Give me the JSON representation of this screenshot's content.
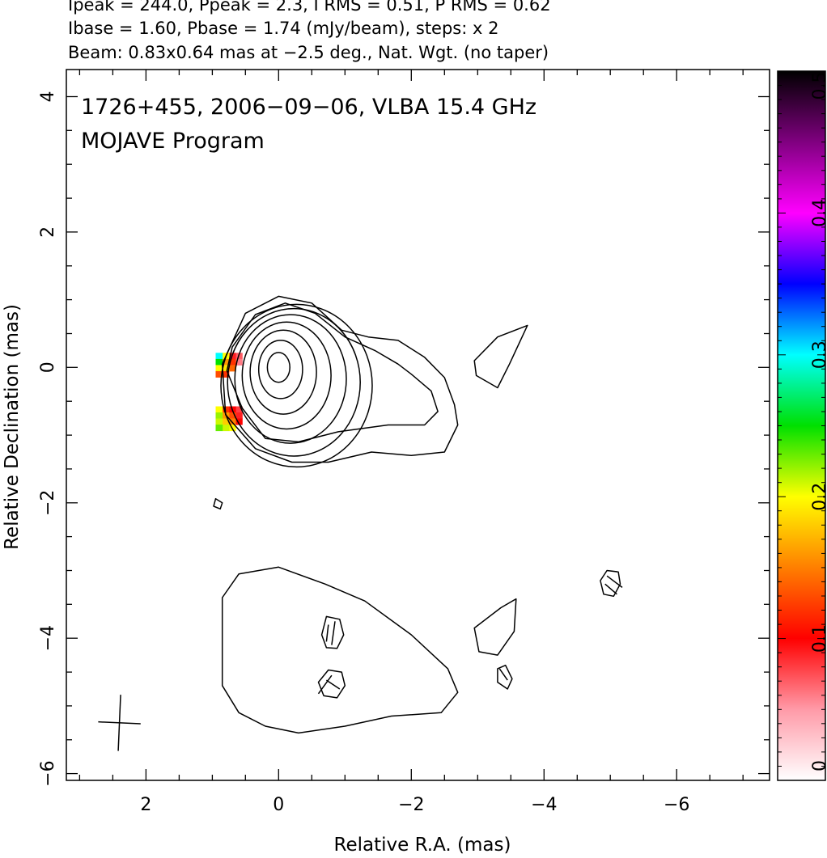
{
  "header": {
    "line1": "Ipeak = 244.0, Ppeak = 2.3, I RMS = 0.51, P RMS = 0.62",
    "line2": "Ibase = 1.60, Pbase = 1.74 (mJy/beam), steps: x 2",
    "line3": "Beam: 0.83x0.64 mas at −2.5 deg., Nat. Wgt. (no taper)"
  },
  "chart_data": {
    "type": "heatmap",
    "title_line1": "1726+455, 2006−09−06, VLBA 15.4 GHz",
    "title_line2": "MOJAVE Program",
    "xlabel": "Relative R.A. (mas)",
    "ylabel": "Relative Declination (mas)",
    "xlim": [
      3.2,
      -7.4
    ],
    "ylim": [
      -6.1,
      4.4
    ],
    "x_ticks": [
      {
        "v": 2,
        "label": "2"
      },
      {
        "v": 0,
        "label": "0"
      },
      {
        "v": -2,
        "label": "−2"
      },
      {
        "v": -4,
        "label": "−4"
      },
      {
        "v": -6,
        "label": "−6"
      }
    ],
    "y_ticks": [
      {
        "v": 4,
        "label": "4"
      },
      {
        "v": 2,
        "label": "2"
      },
      {
        "v": 0,
        "label": "0"
      },
      {
        "v": -2,
        "label": "−2"
      },
      {
        "v": -4,
        "label": "−4"
      },
      {
        "v": -6,
        "label": "−6"
      }
    ],
    "colorbar": {
      "range": [
        0,
        0.5
      ],
      "ticks": [
        {
          "v": 0,
          "label": "0"
        },
        {
          "v": 0.1,
          "label": "0.1"
        },
        {
          "v": 0.2,
          "label": "0.2"
        },
        {
          "v": 0.3,
          "label": "0.3"
        },
        {
          "v": 0.4,
          "label": "0.4"
        },
        {
          "v": 0.5,
          "label": "0.5"
        }
      ],
      "stops": [
        "#ffffff",
        "#ff9aa8",
        "#ff0000",
        "#ff7f00",
        "#ffff00",
        "#00e000",
        "#00ffff",
        "#0000ff",
        "#ff00ff",
        "#800080",
        "#000000"
      ]
    },
    "core_contours": [
      {
        "cx": 0.0,
        "cy": 0.0,
        "rx": 0.17,
        "ry": 0.22
      },
      {
        "cx": -0.03,
        "cy": -0.03,
        "rx": 0.33,
        "ry": 0.43
      },
      {
        "cx": -0.07,
        "cy": -0.07,
        "rx": 0.5,
        "ry": 0.62
      },
      {
        "cx": -0.12,
        "cy": -0.12,
        "rx": 0.67,
        "ry": 0.79
      },
      {
        "cx": -0.18,
        "cy": -0.17,
        "rx": 0.84,
        "ry": 0.95
      },
      {
        "cx": -0.23,
        "cy": -0.22,
        "rx": 1.0,
        "ry": 1.09
      },
      {
        "cx": -0.27,
        "cy": -0.27,
        "rx": 1.14,
        "ry": 1.2
      }
    ],
    "extended_contours": [
      {
        "points": [
          [
            0.7,
            0.3
          ],
          [
            0.35,
            0.78
          ],
          [
            -0.1,
            0.95
          ],
          [
            -0.55,
            0.8
          ],
          [
            -1.0,
            0.45
          ],
          [
            -1.45,
            0.25
          ],
          [
            -1.8,
            0.05
          ],
          [
            -2.0,
            -0.1
          ],
          [
            -2.3,
            -0.35
          ],
          [
            -2.4,
            -0.65
          ],
          [
            -2.2,
            -0.85
          ],
          [
            -1.65,
            -0.85
          ],
          [
            -0.9,
            -0.95
          ],
          [
            -0.3,
            -1.1
          ],
          [
            0.2,
            -1.05
          ],
          [
            0.55,
            -0.6
          ],
          [
            0.78,
            -0.05
          ]
        ]
      },
      {
        "points": [
          [
            0.85,
            0.05
          ],
          [
            0.5,
            0.8
          ],
          [
            0.0,
            1.05
          ],
          [
            -0.5,
            0.95
          ],
          [
            -0.95,
            0.55
          ],
          [
            -1.35,
            0.45
          ],
          [
            -1.8,
            0.4
          ],
          [
            -2.2,
            0.15
          ],
          [
            -2.5,
            -0.15
          ],
          [
            -2.65,
            -0.55
          ],
          [
            -2.7,
            -0.85
          ],
          [
            -2.5,
            -1.25
          ],
          [
            -2.0,
            -1.3
          ],
          [
            -1.4,
            -1.25
          ],
          [
            -0.75,
            -1.4
          ],
          [
            -0.2,
            -1.4
          ],
          [
            0.35,
            -1.2
          ],
          [
            0.8,
            -0.7
          ]
        ]
      },
      {
        "points": [
          [
            -2.95,
            0.1
          ],
          [
            -3.3,
            0.45
          ],
          [
            -3.75,
            0.62
          ],
          [
            -3.48,
            0.05
          ],
          [
            -3.3,
            -0.3
          ],
          [
            -2.98,
            -0.12
          ]
        ]
      },
      {
        "points": [
          [
            0.85,
            -2.0
          ],
          [
            0.95,
            -1.94
          ],
          [
            0.98,
            -2.05
          ],
          [
            0.88,
            -2.09
          ]
        ]
      },
      {
        "points": [
          [
            0.85,
            -3.4
          ],
          [
            0.6,
            -3.05
          ],
          [
            0.0,
            -2.95
          ],
          [
            -0.7,
            -3.2
          ],
          [
            -1.3,
            -3.45
          ],
          [
            -2.0,
            -3.95
          ],
          [
            -2.55,
            -4.45
          ],
          [
            -2.7,
            -4.8
          ],
          [
            -2.45,
            -5.1
          ],
          [
            -1.7,
            -5.15
          ],
          [
            -1.0,
            -5.3
          ],
          [
            -0.3,
            -5.4
          ],
          [
            0.2,
            -5.3
          ],
          [
            0.6,
            -5.1
          ],
          [
            0.85,
            -4.7
          ],
          [
            0.85,
            -4.0
          ]
        ]
      },
      {
        "points": [
          [
            -2.95,
            -3.85
          ],
          [
            -3.35,
            -3.55
          ],
          [
            -3.58,
            -3.42
          ],
          [
            -3.55,
            -3.9
          ],
          [
            -3.3,
            -4.25
          ],
          [
            -3.02,
            -4.2
          ]
        ]
      },
      {
        "points": [
          [
            -0.65,
            -3.95
          ],
          [
            -0.72,
            -3.68
          ],
          [
            -0.92,
            -3.72
          ],
          [
            -0.98,
            -3.95
          ],
          [
            -0.88,
            -4.15
          ],
          [
            -0.72,
            -4.14
          ]
        ]
      },
      {
        "points": [
          [
            -0.6,
            -4.65
          ],
          [
            -0.75,
            -4.47
          ],
          [
            -0.95,
            -4.5
          ],
          [
            -1.0,
            -4.7
          ],
          [
            -0.88,
            -4.88
          ],
          [
            -0.68,
            -4.85
          ]
        ]
      },
      {
        "points": [
          [
            -3.3,
            -4.45
          ],
          [
            -3.42,
            -4.4
          ],
          [
            -3.52,
            -4.6
          ],
          [
            -3.45,
            -4.75
          ],
          [
            -3.3,
            -4.65
          ]
        ]
      },
      {
        "points": [
          [
            -4.85,
            -3.15
          ],
          [
            -4.95,
            -3.0
          ],
          [
            -5.12,
            -3.02
          ],
          [
            -5.15,
            -3.2
          ],
          [
            -5.05,
            -3.38
          ],
          [
            -4.9,
            -3.35
          ]
        ]
      }
    ],
    "evpa_ticks": [
      [
        -0.85,
        -3.75,
        -0.8,
        -4.1
      ],
      [
        -0.75,
        -3.8,
        -0.72,
        -4.05
      ],
      [
        -0.8,
        -4.55,
        -0.6,
        -4.82
      ],
      [
        -0.72,
        -4.62,
        -0.92,
        -4.75
      ],
      [
        -4.95,
        -3.08,
        -5.18,
        -3.25
      ],
      [
        -4.92,
        -3.2,
        -5.1,
        -3.35
      ],
      [
        -3.33,
        -4.45,
        -3.45,
        -4.62
      ]
    ],
    "fractional_polarization_pixels": [
      {
        "x": 0.6,
        "y": 0.17,
        "v": 0.07
      },
      {
        "x": 0.7,
        "y": 0.17,
        "v": 0.09
      },
      {
        "x": 0.8,
        "y": 0.17,
        "v": 0.2
      },
      {
        "x": 0.9,
        "y": 0.17,
        "v": 0.3
      },
      {
        "x": 0.6,
        "y": 0.08,
        "v": 0.06
      },
      {
        "x": 0.7,
        "y": 0.08,
        "v": 0.12
      },
      {
        "x": 0.8,
        "y": 0.08,
        "v": 0.16
      },
      {
        "x": 0.9,
        "y": 0.08,
        "v": 0.25
      },
      {
        "x": 0.7,
        "y": -0.01,
        "v": 0.14
      },
      {
        "x": 0.8,
        "y": -0.01,
        "v": 0.19
      },
      {
        "x": 0.9,
        "y": -0.01,
        "v": 0.2
      },
      {
        "x": 0.8,
        "y": -0.1,
        "v": 0.12
      },
      {
        "x": 0.9,
        "y": -0.1,
        "v": 0.13
      },
      {
        "x": 0.6,
        "y": -0.62,
        "v": 0.08
      },
      {
        "x": 0.7,
        "y": -0.62,
        "v": 0.1
      },
      {
        "x": 0.8,
        "y": -0.62,
        "v": 0.12
      },
      {
        "x": 0.9,
        "y": -0.62,
        "v": 0.2
      },
      {
        "x": 0.6,
        "y": -0.71,
        "v": 0.09
      },
      {
        "x": 0.7,
        "y": -0.71,
        "v": 0.13
      },
      {
        "x": 0.8,
        "y": -0.71,
        "v": 0.16
      },
      {
        "x": 0.9,
        "y": -0.71,
        "v": 0.22
      },
      {
        "x": 0.6,
        "y": -0.8,
        "v": 0.1
      },
      {
        "x": 0.7,
        "y": -0.8,
        "v": 0.15
      },
      {
        "x": 0.8,
        "y": -0.8,
        "v": 0.18
      },
      {
        "x": 0.9,
        "y": -0.8,
        "v": 0.21
      },
      {
        "x": 0.7,
        "y": -0.89,
        "v": 0.2
      },
      {
        "x": 0.8,
        "y": -0.89,
        "v": 0.21
      },
      {
        "x": 0.9,
        "y": -0.89,
        "v": 0.23
      }
    ],
    "beam": {
      "x": 2.4,
      "y": -5.25,
      "major": 0.83,
      "minor": 0.64,
      "pa_deg": -2.5
    }
  }
}
